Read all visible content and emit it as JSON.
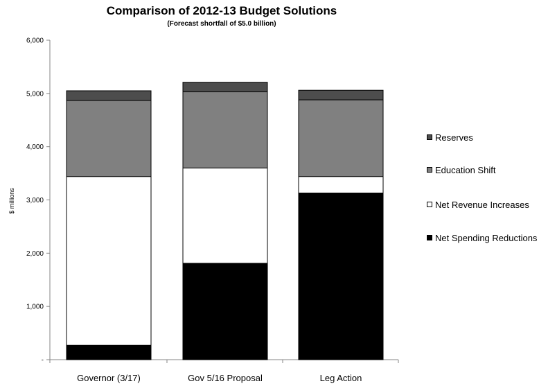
{
  "chart_data": {
    "type": "bar",
    "stacked": true,
    "title": "Comparison of 2012-13 Budget Solutions",
    "subtitle": "(Forecast shortfall of $5.0 billion)",
    "xlabel": "",
    "ylabel": "$ millions",
    "ylim": [
      0,
      6000
    ],
    "yticks": [
      0,
      1000,
      2000,
      3000,
      4000,
      5000,
      6000
    ],
    "ytick_labels": [
      "-",
      "1,000",
      "2,000",
      "3,000",
      "4,000",
      "5,000",
      "6,000"
    ],
    "categories": [
      "Governor (3/17)",
      "Gov 5/16 Proposal",
      "Leg Action"
    ],
    "series": [
      {
        "name": "Net Spending Reductions",
        "color": "#000000",
        "values": [
          270,
          1810,
          3130
        ]
      },
      {
        "name": "Net Revenue Increases",
        "color": "#ffffff",
        "values": [
          3170,
          1790,
          310
        ]
      },
      {
        "name": "Education Shift",
        "color": "#808080",
        "values": [
          1430,
          1430,
          1440
        ]
      },
      {
        "name": "Reserves",
        "color": "#4d4d4d",
        "values": [
          180,
          180,
          180
        ]
      }
    ],
    "legend_order": [
      "Reserves",
      "Education Shift",
      "Net Revenue Increases",
      "Net Spending Reductions"
    ],
    "legend_position": "right",
    "grid": false
  }
}
